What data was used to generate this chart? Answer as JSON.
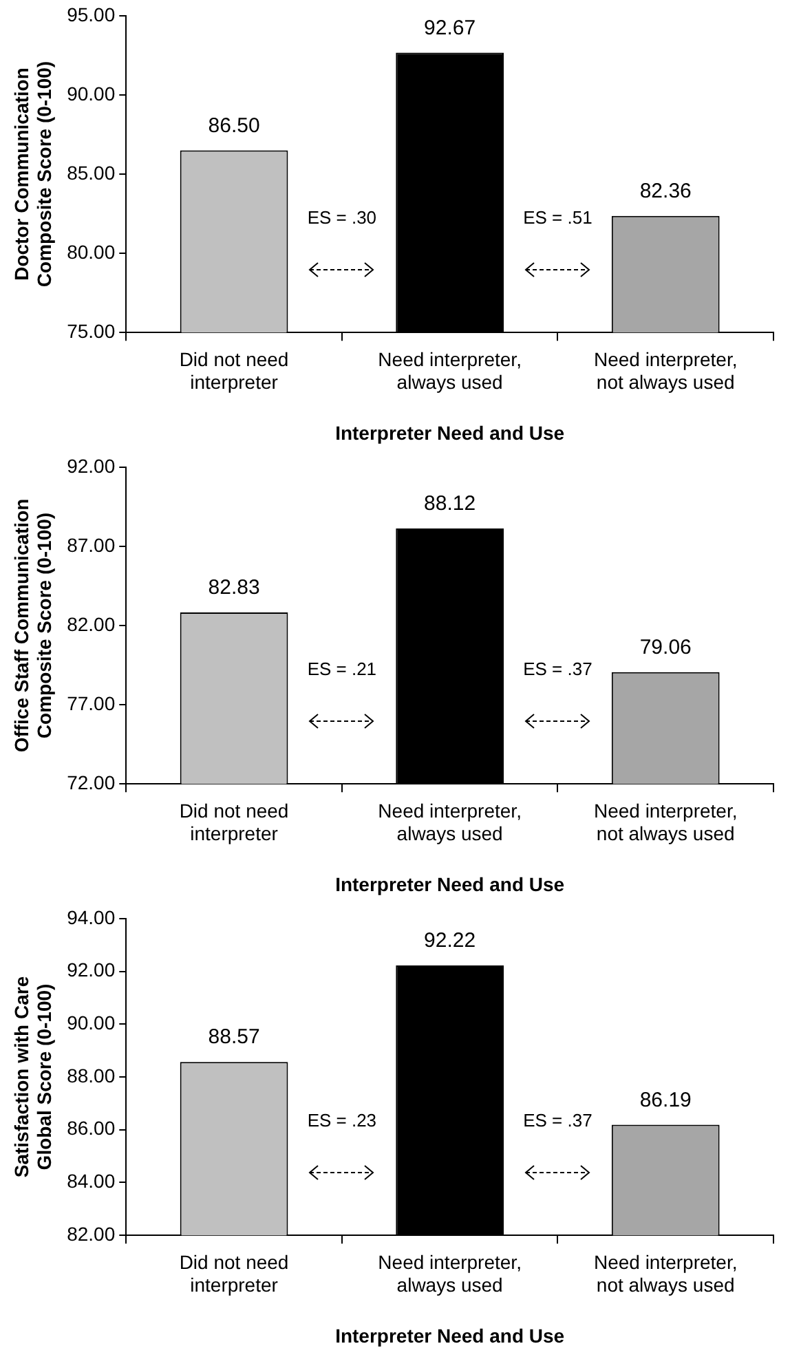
{
  "chart_data": [
    {
      "type": "bar",
      "xlabel": "Interpreter Need and Use",
      "ylabel": "Doctor Communication Composite Score (0-100)",
      "categories": [
        "Did not need interpreter",
        "Need interpreter, always used",
        "Need interpreter, not always used"
      ],
      "colors": [
        "#c0c0c0",
        "#000000",
        "#a6a6a6"
      ],
      "values": [
        86.5,
        92.67,
        82.36
      ],
      "value_labels": [
        "86.50",
        "92.67",
        "82.36"
      ],
      "ylim": [
        75,
        95
      ],
      "yticks": [
        {
          "value": 75,
          "label": "75.00"
        },
        {
          "value": 80,
          "label": "80.00"
        },
        {
          "value": 85,
          "label": "85.00"
        },
        {
          "value": 90,
          "label": "90.00"
        },
        {
          "value": 95,
          "label": "95.00"
        }
      ],
      "grid": false,
      "annotations": [
        "ES = .30",
        "ES = .51"
      ]
    },
    {
      "type": "bar",
      "xlabel": "Interpreter Need and Use",
      "ylabel": "Office Staff Communication Composite Score (0-100)",
      "categories": [
        "Did not need interpreter",
        "Need interpreter, always used",
        "Need interpreter, not always used"
      ],
      "colors": [
        "#c0c0c0",
        "#000000",
        "#a6a6a6"
      ],
      "values": [
        82.83,
        88.12,
        79.06
      ],
      "value_labels": [
        "82.83",
        "88.12",
        "79.06"
      ],
      "ylim": [
        72,
        92
      ],
      "yticks": [
        {
          "value": 72,
          "label": "72.00"
        },
        {
          "value": 77,
          "label": "77.00"
        },
        {
          "value": 82,
          "label": "82.00"
        },
        {
          "value": 87,
          "label": "87.00"
        },
        {
          "value": 92,
          "label": "92.00"
        }
      ],
      "grid": false,
      "annotations": [
        "ES = .21",
        "ES = .37"
      ]
    },
    {
      "type": "bar",
      "xlabel": "Interpreter Need and Use",
      "ylabel": "Satisfaction with Care Global Score (0-100)",
      "categories": [
        "Did not need interpreter",
        "Need interpreter, always used",
        "Need interpreter, not always used"
      ],
      "colors": [
        "#c0c0c0",
        "#000000",
        "#a6a6a6"
      ],
      "values": [
        88.57,
        92.22,
        86.19
      ],
      "value_labels": [
        "88.57",
        "92.22",
        "86.19"
      ],
      "ylim": [
        82,
        94
      ],
      "yticks": [
        {
          "value": 82,
          "label": "82.00"
        },
        {
          "value": 84,
          "label": "84.00"
        },
        {
          "value": 86,
          "label": "86.00"
        },
        {
          "value": 88,
          "label": "88.00"
        },
        {
          "value": 90,
          "label": "90.00"
        },
        {
          "value": 92,
          "label": "92.00"
        },
        {
          "value": 94,
          "label": "94.00"
        }
      ],
      "grid": false,
      "annotations": [
        "ES = .23",
        "ES = .37"
      ]
    }
  ]
}
